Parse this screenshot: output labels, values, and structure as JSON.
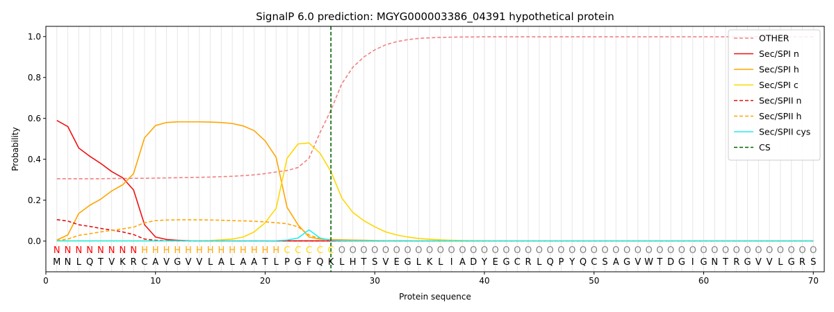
{
  "chart_data": {
    "type": "line",
    "title": "SignalP 6.0 prediction: MGYG000003386_04391 hypothetical protein",
    "xlabel": "Protein sequence",
    "ylabel": "Probability",
    "xlim": [
      0,
      71
    ],
    "ylim": [
      -0.15,
      1.05
    ],
    "xticks": [
      0,
      10,
      20,
      30,
      40,
      50,
      60,
      70
    ],
    "yticks": [
      0.0,
      0.2,
      0.4,
      0.6,
      0.8,
      1.0
    ],
    "x_tick_labels": [
      "0",
      "10",
      "20",
      "30",
      "40",
      "50",
      "60",
      "70"
    ],
    "y_tick_labels": [
      "0.0",
      "0.2",
      "0.4",
      "0.6",
      "0.8",
      "1.0"
    ],
    "grid": "vertical lines at every residue",
    "legend_position": "top-right",
    "cleavage_site": 26,
    "sequence": [
      "M",
      "N",
      "L",
      "Q",
      "T",
      "V",
      "K",
      "R",
      "C",
      "A",
      "V",
      "G",
      "V",
      "V",
      "L",
      "A",
      "L",
      "A",
      "A",
      "T",
      "L",
      "P",
      "G",
      "F",
      "Q",
      "K",
      "L",
      "H",
      "T",
      "S",
      "V",
      "E",
      "G",
      "L",
      "K",
      "L",
      "I",
      "A",
      "D",
      "Y",
      "E",
      "G",
      "C",
      "R",
      "L",
      "Q",
      "P",
      "Y",
      "Q",
      "C",
      "S",
      "A",
      "G",
      "V",
      "W",
      "T",
      "D",
      "G",
      "I",
      "G",
      "N",
      "T",
      "R",
      "G",
      "V",
      "V",
      "L",
      "G",
      "R",
      "S"
    ],
    "region_labels": [
      "N",
      "N",
      "N",
      "N",
      "N",
      "N",
      "N",
      "N",
      "H",
      "H",
      "H",
      "H",
      "H",
      "H",
      "H",
      "H",
      "H",
      "H",
      "H",
      "H",
      "H",
      "C",
      "C",
      "C",
      "C",
      "C",
      "O",
      "O",
      "O",
      "O",
      "O",
      "O",
      "O",
      "O",
      "O",
      "O",
      "O",
      "O",
      "O",
      "O",
      "O",
      "O",
      "O",
      "O",
      "O",
      "O",
      "O",
      "O",
      "O",
      "O",
      "O",
      "O",
      "O",
      "O",
      "O",
      "O",
      "O",
      "O",
      "O",
      "O",
      "O",
      "O",
      "O",
      "O",
      "O",
      "O",
      "O",
      "O",
      "O",
      "O"
    ],
    "region_colors": {
      "N": "#ff0000",
      "H": "#ffa500",
      "C": "#ffd700",
      "O": "#808080"
    },
    "series": [
      {
        "name": "OTHER",
        "color": "#f08080",
        "dash": "dashed",
        "values": [
          0.305,
          0.305,
          0.305,
          0.305,
          0.305,
          0.306,
          0.306,
          0.307,
          0.307,
          0.308,
          0.309,
          0.31,
          0.311,
          0.312,
          0.313,
          0.315,
          0.317,
          0.32,
          0.324,
          0.33,
          0.338,
          0.345,
          0.36,
          0.405,
          0.53,
          0.64,
          0.77,
          0.85,
          0.9,
          0.935,
          0.96,
          0.975,
          0.985,
          0.991,
          0.994,
          0.996,
          0.997,
          0.998,
          0.998,
          0.999,
          0.999,
          0.999,
          0.999,
          0.999,
          0.999,
          0.999,
          0.999,
          0.999,
          0.999,
          0.999,
          0.999,
          0.999,
          0.999,
          0.999,
          0.999,
          0.999,
          0.999,
          0.999,
          0.999,
          0.999,
          0.999,
          0.999,
          0.999,
          0.999,
          0.999,
          0.999,
          0.999,
          0.999,
          0.999,
          0.999
        ]
      },
      {
        "name": "Sec/SPI n",
        "color": "#ee1111",
        "dash": "solid",
        "values": [
          0.59,
          0.56,
          0.455,
          0.415,
          0.38,
          0.34,
          0.31,
          0.25,
          0.08,
          0.02,
          0.008,
          0.004,
          0.002,
          0.001,
          0.001,
          0.001,
          0.001,
          0.001,
          0.001,
          0.001,
          0.001,
          0.001,
          0.001,
          0.001,
          0.001,
          0.001,
          0.001,
          0.001,
          0.001,
          0.001,
          0.001,
          0.001,
          0.001,
          0.001,
          0.001,
          0.001,
          0.001,
          0.001,
          0.001,
          0.001,
          0.001,
          0.001,
          0.001,
          0.001,
          0.001,
          0.001,
          0.001,
          0.001,
          0.001,
          0.001,
          0.001,
          0.001,
          0.001,
          0.001,
          0.001,
          0.001,
          0.001,
          0.001,
          0.001,
          0.001,
          0.001,
          0.001,
          0.001,
          0.001,
          0.001,
          0.001,
          0.001,
          0.001,
          0.001,
          0.001
        ]
      },
      {
        "name": "Sec/SPI h",
        "color": "#ffa500",
        "dash": "solid",
        "values": [
          0.005,
          0.03,
          0.135,
          0.175,
          0.205,
          0.245,
          0.275,
          0.33,
          0.505,
          0.565,
          0.58,
          0.583,
          0.583,
          0.583,
          0.582,
          0.58,
          0.575,
          0.563,
          0.54,
          0.49,
          0.41,
          0.165,
          0.08,
          0.02,
          0.01,
          0.008,
          0.006,
          0.005,
          0.004,
          0.003,
          0.002,
          0.002,
          0.002,
          0.001,
          0.001,
          0.001,
          0.001,
          0.001,
          0.001,
          0.001,
          0.001,
          0.001,
          0.001,
          0.001,
          0.001,
          0.001,
          0.001,
          0.001,
          0.001,
          0.001,
          0.001,
          0.001,
          0.001,
          0.001,
          0.001,
          0.001,
          0.001,
          0.001,
          0.001,
          0.001,
          0.001,
          0.001,
          0.001,
          0.001,
          0.001,
          0.001,
          0.001,
          0.001,
          0.001,
          0.001
        ]
      },
      {
        "name": "Sec/SPI c",
        "color": "#ffd700",
        "dash": "solid",
        "values": [
          0.001,
          0.001,
          0.001,
          0.001,
          0.001,
          0.001,
          0.001,
          0.001,
          0.001,
          0.001,
          0.001,
          0.001,
          0.001,
          0.002,
          0.003,
          0.006,
          0.01,
          0.02,
          0.045,
          0.09,
          0.16,
          0.405,
          0.475,
          0.48,
          0.43,
          0.34,
          0.21,
          0.14,
          0.1,
          0.07,
          0.045,
          0.03,
          0.02,
          0.013,
          0.009,
          0.006,
          0.004,
          0.003,
          0.002,
          0.002,
          0.001,
          0.001,
          0.001,
          0.001,
          0.001,
          0.001,
          0.001,
          0.001,
          0.001,
          0.001,
          0.001,
          0.001,
          0.001,
          0.001,
          0.001,
          0.001,
          0.001,
          0.001,
          0.001,
          0.001,
          0.001,
          0.001,
          0.001,
          0.001,
          0.001,
          0.001,
          0.001,
          0.001,
          0.001,
          0.001
        ]
      },
      {
        "name": "Sec/SPII n",
        "color": "#dd1111",
        "dash": "dashed",
        "values": [
          0.105,
          0.098,
          0.08,
          0.072,
          0.062,
          0.054,
          0.045,
          0.032,
          0.01,
          0.004,
          0.002,
          0.001,
          0.001,
          0.001,
          0.001,
          0.001,
          0.001,
          0.001,
          0.001,
          0.001,
          0.001,
          0.001,
          0.001,
          0.001,
          0.001,
          0.001,
          0.001,
          0.001,
          0.001,
          0.001,
          0.001,
          0.001,
          0.001,
          0.001,
          0.001,
          0.001,
          0.001,
          0.001,
          0.001,
          0.001,
          0.001,
          0.001,
          0.001,
          0.001,
          0.001,
          0.001,
          0.001,
          0.001,
          0.001,
          0.001,
          0.001,
          0.001,
          0.001,
          0.001,
          0.001,
          0.001,
          0.001,
          0.001,
          0.001,
          0.001,
          0.001,
          0.001,
          0.001,
          0.001,
          0.001,
          0.001,
          0.001,
          0.001,
          0.001,
          0.001
        ]
      },
      {
        "name": "Sec/SPII h",
        "color": "#ffa500",
        "dash": "dashed",
        "values": [
          0.002,
          0.01,
          0.028,
          0.036,
          0.045,
          0.052,
          0.06,
          0.068,
          0.09,
          0.1,
          0.103,
          0.104,
          0.104,
          0.104,
          0.103,
          0.102,
          0.1,
          0.099,
          0.097,
          0.094,
          0.09,
          0.085,
          0.07,
          0.03,
          0.012,
          0.006,
          0.004,
          0.003,
          0.002,
          0.002,
          0.001,
          0.001,
          0.001,
          0.001,
          0.001,
          0.001,
          0.001,
          0.001,
          0.001,
          0.001,
          0.001,
          0.001,
          0.001,
          0.001,
          0.001,
          0.001,
          0.001,
          0.001,
          0.001,
          0.001,
          0.001,
          0.001,
          0.001,
          0.001,
          0.001,
          0.001,
          0.001,
          0.001,
          0.001,
          0.001,
          0.001,
          0.001,
          0.001,
          0.001,
          0.001,
          0.001,
          0.001,
          0.001,
          0.001,
          0.001
        ]
      },
      {
        "name": "Sec/SPII cys",
        "color": "#22eeee",
        "dash": "solid",
        "values": [
          0.001,
          0.001,
          0.001,
          0.001,
          0.001,
          0.001,
          0.001,
          0.001,
          0.001,
          0.001,
          0.001,
          0.001,
          0.001,
          0.001,
          0.001,
          0.001,
          0.001,
          0.001,
          0.001,
          0.001,
          0.002,
          0.005,
          0.015,
          0.055,
          0.015,
          0.004,
          0.002,
          0.001,
          0.001,
          0.001,
          0.001,
          0.001,
          0.001,
          0.001,
          0.001,
          0.001,
          0.001,
          0.001,
          0.001,
          0.001,
          0.001,
          0.001,
          0.001,
          0.001,
          0.001,
          0.001,
          0.001,
          0.001,
          0.001,
          0.001,
          0.001,
          0.001,
          0.001,
          0.001,
          0.001,
          0.001,
          0.001,
          0.001,
          0.001,
          0.001,
          0.001,
          0.001,
          0.001,
          0.001,
          0.001,
          0.001,
          0.001,
          0.001,
          0.001,
          0.001
        ]
      }
    ],
    "legend": [
      {
        "name": "OTHER",
        "color": "#f08080",
        "dash": "dashed"
      },
      {
        "name": "Sec/SPI n",
        "color": "#ee1111",
        "dash": "solid"
      },
      {
        "name": "Sec/SPI h",
        "color": "#ffa500",
        "dash": "solid"
      },
      {
        "name": "Sec/SPI c",
        "color": "#ffd700",
        "dash": "solid"
      },
      {
        "name": "Sec/SPII n",
        "color": "#dd1111",
        "dash": "dashed"
      },
      {
        "name": "Sec/SPII h",
        "color": "#ffa500",
        "dash": "dashed"
      },
      {
        "name": "Sec/SPII cys",
        "color": "#22eeee",
        "dash": "solid"
      },
      {
        "name": "CS",
        "color": "#006400",
        "dash": "dashed"
      }
    ]
  }
}
